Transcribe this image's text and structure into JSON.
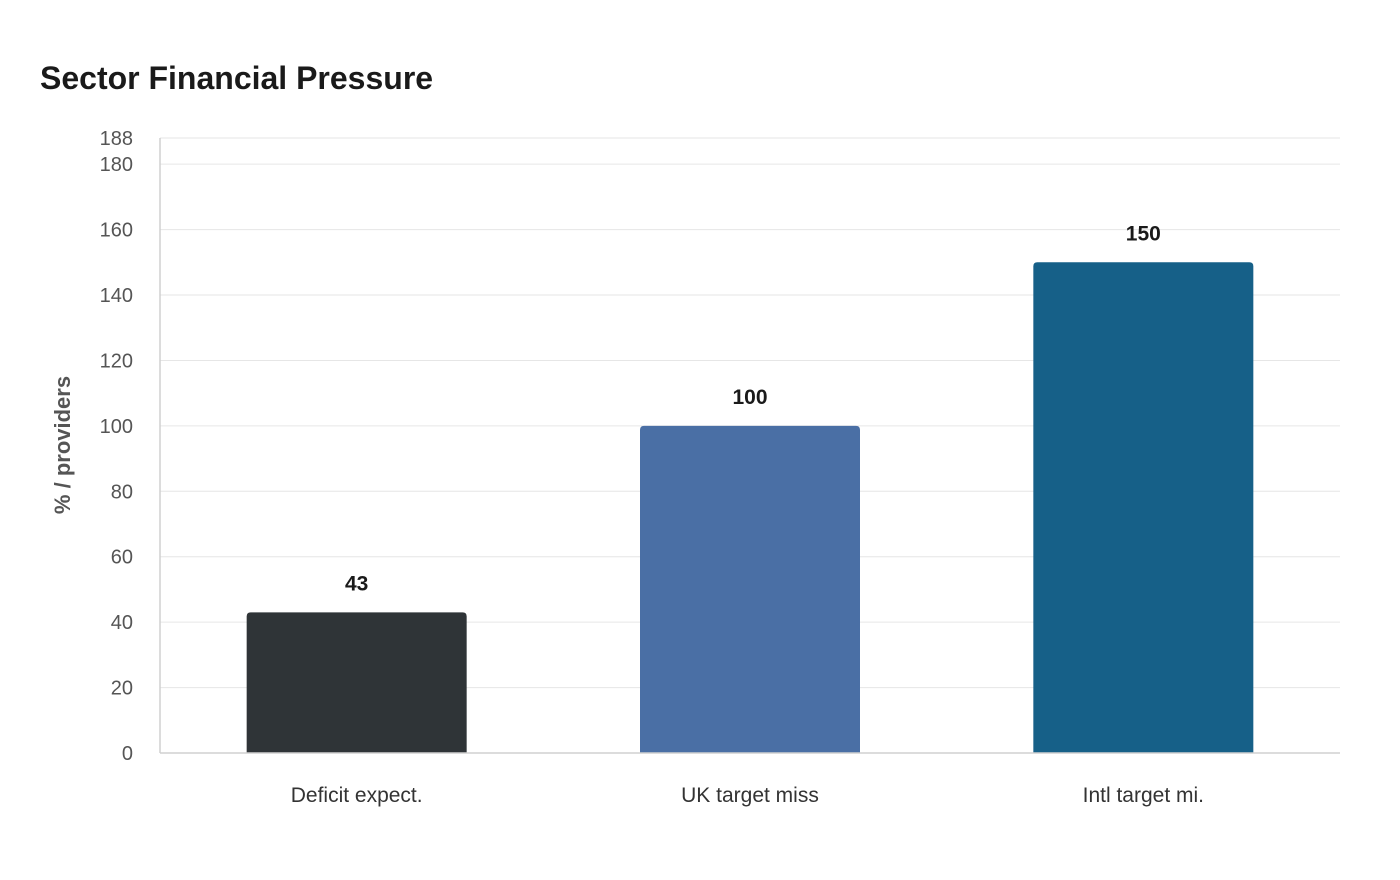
{
  "chart_data": {
    "type": "bar",
    "title": "Sector Financial Pressure",
    "xlabel": "",
    "ylabel": "% / providers",
    "categories": [
      "Deficit expect.",
      "UK target miss",
      "Intl target mi."
    ],
    "values": [
      43,
      100,
      150
    ],
    "colors": [
      "#2f3437",
      "#4a6fa5",
      "#166088"
    ],
    "ylim": [
      0,
      188
    ],
    "yticks": [
      0,
      20,
      40,
      60,
      80,
      100,
      120,
      140,
      160,
      180,
      188
    ],
    "grid": true,
    "legend": "none"
  }
}
